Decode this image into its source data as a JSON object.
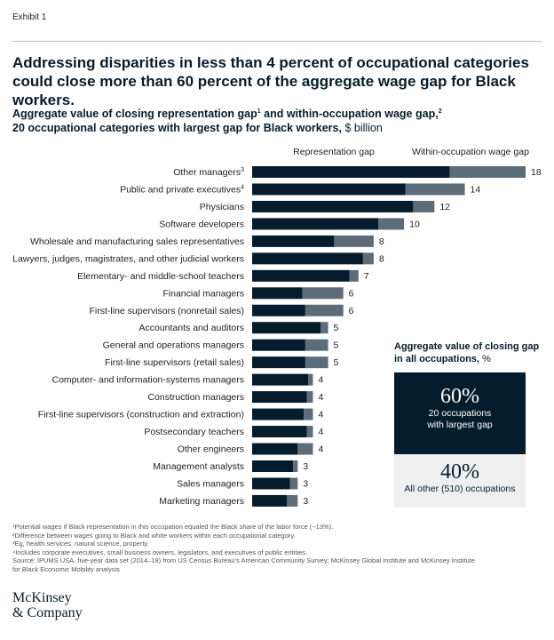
{
  "exhibit_label": "Exhibit 1",
  "headline": "Addressing disparities in less than 4 percent of occupational categories could close more than 60 percent of the aggregate wage gap for Black workers.",
  "subtitle": {
    "line1_part1": "Aggregate value of closing representation gap",
    "line1_sup1": "1",
    "line1_part2": " and within-occupation wage gap,",
    "line1_sup2": "2",
    "line2_bold": "20 occupational categories with largest gap for Black workers,",
    "line2_unit": " $ billion"
  },
  "colors": {
    "representation": "#051c2c",
    "within": "#5c6c79",
    "text": "#051c2c"
  },
  "chart_data": {
    "type": "bar",
    "orientation": "horizontal",
    "stacked": true,
    "xlim": [
      0,
      18
    ],
    "categories": [
      "Other managers",
      "Public and private executives",
      "Physicians",
      "Software developers",
      "Wholesale and manufacturing sales representatives",
      "Lawyers, judges, magistrates, and other judicial workers",
      "Elementary- and middle-school teachers",
      "Financial managers",
      "First-line supervisors (nonretail sales)",
      "Accountants and auditors",
      "General and operations managers",
      "First-line supervisors (retail sales)",
      "Computer- and information-systems managers",
      "Construction managers",
      "First-line supervisors (construction and extraction)",
      "Postsecondary teachers",
      "Other engineers",
      "Management analysts",
      "Sales managers",
      "Marketing managers"
    ],
    "category_footnotes": [
      "3",
      "4",
      "",
      "",
      "",
      "",
      "",
      "",
      "",
      "",
      "",
      "",
      "",
      "",
      "",
      "",
      "",
      "",
      "",
      ""
    ],
    "series": [
      {
        "name": "Representation gap",
        "values": [
          13.0,
          10.1,
          10.6,
          8.3,
          5.4,
          7.3,
          6.4,
          3.3,
          3.5,
          4.5,
          3.5,
          3.5,
          3.7,
          3.6,
          3.4,
          3.6,
          3.0,
          2.7,
          2.5,
          2.3
        ]
      },
      {
        "name": "Within-occupation wage gap",
        "values": [
          5.0,
          3.9,
          1.4,
          1.7,
          2.6,
          0.7,
          0.6,
          2.7,
          2.5,
          0.5,
          1.5,
          1.5,
          0.3,
          0.4,
          0.6,
          0.4,
          1.0,
          0.3,
          0.5,
          0.7
        ]
      }
    ],
    "totals": [
      "18",
      "14",
      "12",
      "10",
      "8",
      "8",
      "7",
      "6",
      "6",
      "5",
      "5",
      "5",
      "4",
      "4",
      "4",
      "4",
      "4",
      "3",
      "3",
      "3"
    ],
    "legend": [
      "Representation gap",
      "Within-occupation wage gap"
    ]
  },
  "aggregate": {
    "title": "Aggregate value of closing gap in all occupations,",
    "unit": " %",
    "top": {
      "value": "60%",
      "line1": "20 occupations",
      "line2": "with largest gap"
    },
    "bottom": {
      "value": "40%",
      "line1": "All other (510) occupations"
    }
  },
  "footnotes": [
    "¹Potential wages if Black representation in this occupation equaled the Black share of the labor force (~13%).",
    "²Difference between wages going to Black and white workers within each occupational category.",
    "³Eg, health services, natural science, property.",
    "⁴Includes corporate executives, small business owners, legislators, and executives of public entities.",
    " Source: IPUMS USA, five-year data set (2014–18) from US Census Bureau’s American Community Survey; McKinsey Global Institute and McKinsey Institute",
    " for Black Economic Mobility analysis"
  ],
  "logo": {
    "line1": "McKinsey",
    "line2": "& Company"
  }
}
